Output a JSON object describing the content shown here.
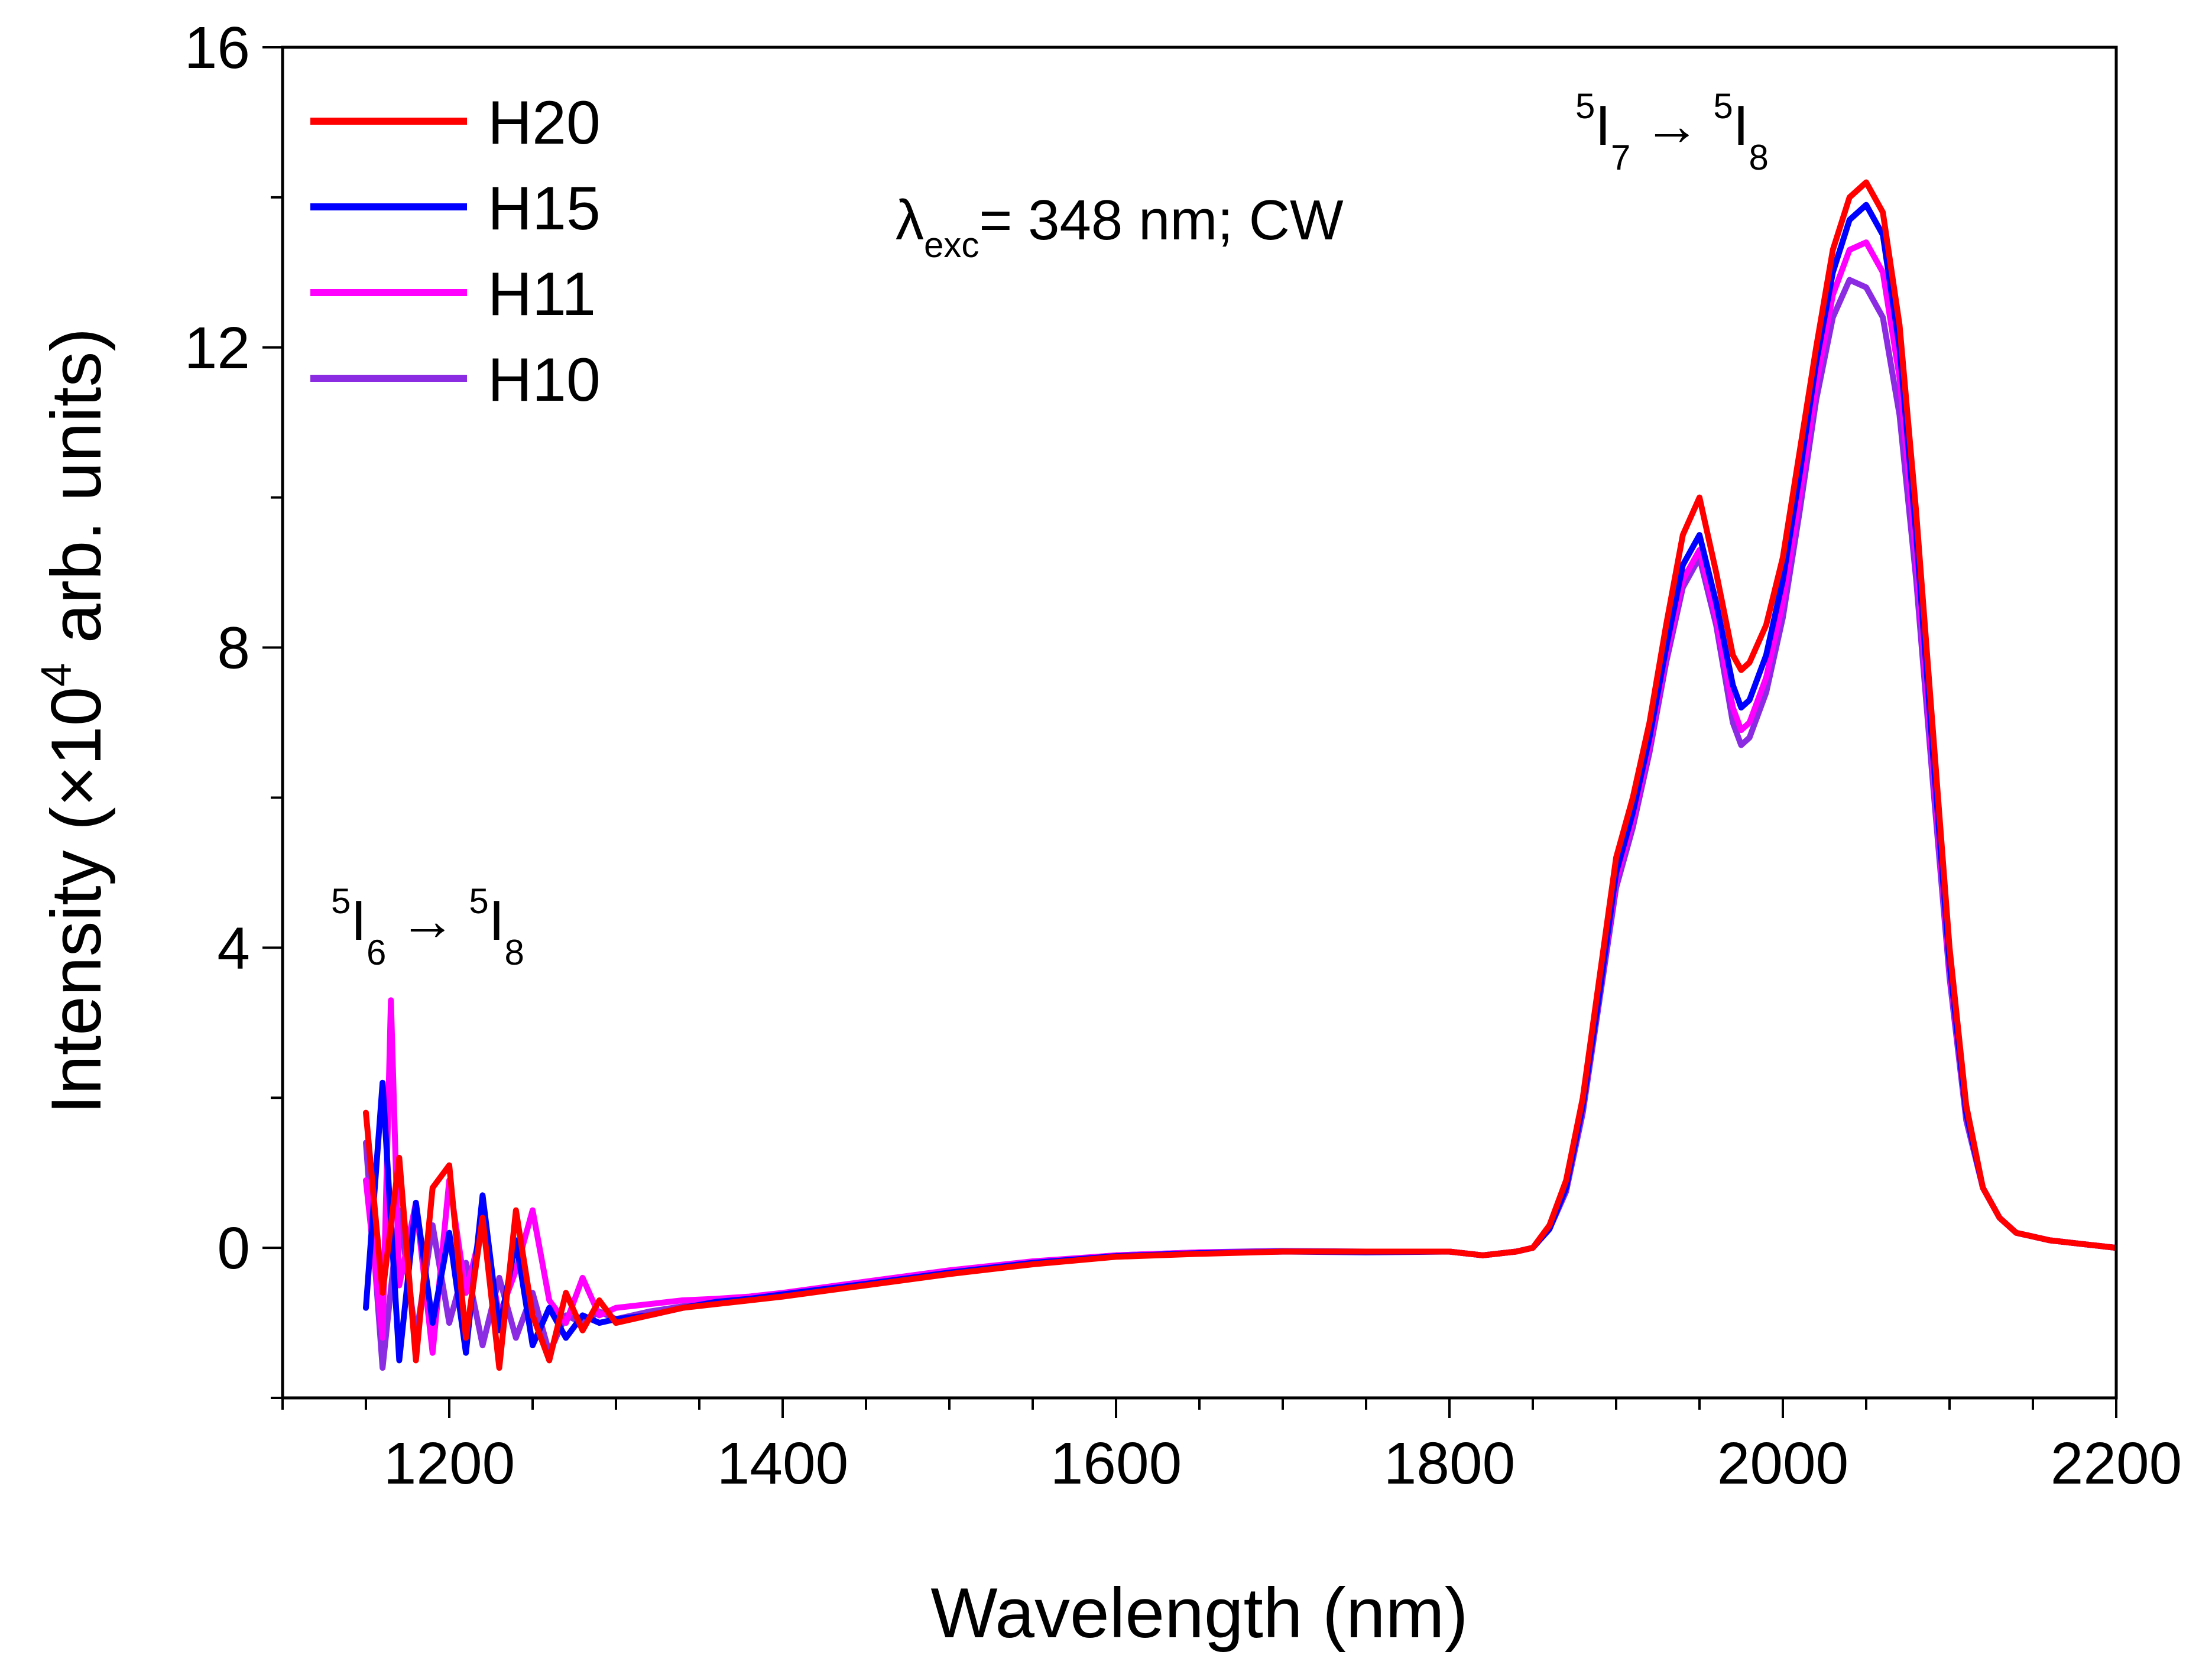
{
  "chart_data": {
    "type": "line",
    "title": "",
    "xlabel": "Wavelength (nm)",
    "ylabel_prefix": "Intensity (×10",
    "ylabel_exponent": "4",
    "ylabel_suffix": " arb. units)",
    "xlim": [
      1100,
      2200
    ],
    "ylim": [
      -2,
      16
    ],
    "x_ticks": [
      1200,
      1400,
      1600,
      1800,
      2000,
      2200
    ],
    "x_tick_labels": [
      "1200",
      "1400",
      "1600",
      "1800",
      "2000",
      "2200"
    ],
    "x_minor_step": 50,
    "y_ticks": [
      0,
      4,
      8,
      12,
      16
    ],
    "y_tick_labels": [
      "0",
      "4",
      "8",
      "12",
      "16"
    ],
    "y_minor_step": 2,
    "grid": false,
    "legend_position": "top-left",
    "annotation_excitation": {
      "symbol": "λ",
      "subscript": "exc",
      "text": "= 348 nm; CW"
    },
    "annotation_peak_low": {
      "sup1": "5",
      "level1": "I",
      "sub1": "6",
      "arrow": "→",
      "sup2": "5",
      "level2": "I",
      "sub2": "8"
    },
    "annotation_peak_high": {
      "sup1": "5",
      "level1": "I",
      "sub1": "7",
      "arrow": "→",
      "sup2": "5",
      "level2": "I",
      "sub2": "8"
    },
    "series": [
      {
        "name": "H20",
        "color": "#ff0000",
        "x": [
          1150,
          1160,
          1170,
          1180,
          1190,
          1200,
          1210,
          1220,
          1230,
          1240,
          1250,
          1260,
          1270,
          1280,
          1290,
          1300,
          1320,
          1340,
          1360,
          1380,
          1400,
          1450,
          1500,
          1550,
          1600,
          1650,
          1700,
          1750,
          1800,
          1820,
          1840,
          1850,
          1860,
          1870,
          1880,
          1890,
          1900,
          1910,
          1920,
          1930,
          1940,
          1950,
          1960,
          1970,
          1975,
          1980,
          1990,
          2000,
          2010,
          2020,
          2030,
          2040,
          2050,
          2060,
          2070,
          2080,
          2090,
          2100,
          2110,
          2120,
          2130,
          2140,
          2160,
          2180,
          2200
        ],
        "y": [
          1.8,
          -0.6,
          1.2,
          -1.5,
          0.8,
          1.1,
          -1.2,
          0.4,
          -1.6,
          0.5,
          -0.9,
          -1.5,
          -0.6,
          -1.1,
          -0.7,
          -1.0,
          -0.9,
          -0.8,
          -0.75,
          -0.7,
          -0.65,
          -0.5,
          -0.35,
          -0.22,
          -0.12,
          -0.08,
          -0.05,
          -0.05,
          -0.05,
          -0.1,
          -0.05,
          0.0,
          0.3,
          0.9,
          2.0,
          3.6,
          5.2,
          6.0,
          7.0,
          8.3,
          9.5,
          10.0,
          9.0,
          7.9,
          7.7,
          7.8,
          8.3,
          9.2,
          10.6,
          12.0,
          13.3,
          14.0,
          14.2,
          13.8,
          12.3,
          9.8,
          6.9,
          4.0,
          1.9,
          0.8,
          0.4,
          0.2,
          0.1,
          0.05,
          0.0
        ]
      },
      {
        "name": "H15",
        "color": "#0000ff",
        "x": [
          1150,
          1160,
          1170,
          1180,
          1190,
          1200,
          1210,
          1220,
          1230,
          1240,
          1250,
          1260,
          1270,
          1280,
          1290,
          1300,
          1320,
          1340,
          1360,
          1380,
          1400,
          1450,
          1500,
          1550,
          1600,
          1650,
          1700,
          1750,
          1800,
          1820,
          1840,
          1850,
          1860,
          1870,
          1880,
          1890,
          1900,
          1910,
          1920,
          1930,
          1940,
          1950,
          1960,
          1970,
          1975,
          1980,
          1990,
          2000,
          2010,
          2020,
          2030,
          2040,
          2050,
          2060,
          2070,
          2080,
          2090,
          2100,
          2110,
          2120,
          2130,
          2140,
          2160,
          2180,
          2200
        ],
        "y": [
          -0.8,
          2.2,
          -1.5,
          0.6,
          -1.0,
          0.2,
          -1.4,
          0.7,
          -1.1,
          0.1,
          -1.3,
          -0.8,
          -1.2,
          -0.9,
          -1.0,
          -0.95,
          -0.9,
          -0.8,
          -0.72,
          -0.68,
          -0.62,
          -0.48,
          -0.33,
          -0.2,
          -0.11,
          -0.07,
          -0.05,
          -0.06,
          -0.05,
          -0.1,
          -0.05,
          0.0,
          0.25,
          0.8,
          1.9,
          3.4,
          5.0,
          5.8,
          6.8,
          8.0,
          9.1,
          9.5,
          8.6,
          7.5,
          7.2,
          7.3,
          7.9,
          8.9,
          10.3,
          11.8,
          13.0,
          13.7,
          13.9,
          13.5,
          12.0,
          9.5,
          6.6,
          3.8,
          1.8,
          0.8,
          0.4,
          0.2,
          0.1,
          0.05,
          0.0
        ]
      },
      {
        "name": "H11",
        "color": "#ff00ff",
        "x": [
          1150,
          1160,
          1165,
          1170,
          1180,
          1190,
          1200,
          1210,
          1220,
          1230,
          1240,
          1250,
          1260,
          1270,
          1280,
          1290,
          1300,
          1320,
          1340,
          1360,
          1380,
          1400,
          1450,
          1500,
          1550,
          1600,
          1650,
          1700,
          1750,
          1800,
          1820,
          1840,
          1850,
          1860,
          1870,
          1880,
          1890,
          1900,
          1910,
          1920,
          1930,
          1940,
          1950,
          1960,
          1970,
          1975,
          1980,
          1990,
          2000,
          2010,
          2020,
          2030,
          2040,
          2050,
          2060,
          2070,
          2080,
          2090,
          2100,
          2110,
          2120,
          2130,
          2140,
          2160,
          2180,
          2200
        ],
        "y": [
          0.9,
          -1.2,
          3.3,
          -0.5,
          0.6,
          -1.4,
          0.9,
          -0.6,
          0.3,
          -0.9,
          -0.3,
          0.5,
          -0.7,
          -1.0,
          -0.4,
          -0.9,
          -0.8,
          -0.75,
          -0.7,
          -0.68,
          -0.65,
          -0.6,
          -0.45,
          -0.3,
          -0.18,
          -0.1,
          -0.06,
          -0.05,
          -0.05,
          -0.05,
          -0.1,
          -0.05,
          0.0,
          0.25,
          0.8,
          1.9,
          3.4,
          4.9,
          5.7,
          6.7,
          7.9,
          8.9,
          9.3,
          8.4,
          7.2,
          6.9,
          7.0,
          7.6,
          8.6,
          10.0,
          11.5,
          12.7,
          13.3,
          13.4,
          13.0,
          11.6,
          9.2,
          6.4,
          3.7,
          1.8,
          0.8,
          0.4,
          0.2,
          0.1,
          0.05,
          0.0
        ]
      },
      {
        "name": "H10",
        "color": "#8b2be2",
        "x": [
          1150,
          1160,
          1170,
          1180,
          1190,
          1200,
          1210,
          1220,
          1230,
          1240,
          1250,
          1260,
          1270,
          1280,
          1290,
          1300,
          1320,
          1340,
          1360,
          1380,
          1400,
          1450,
          1500,
          1550,
          1600,
          1650,
          1700,
          1750,
          1800,
          1820,
          1840,
          1850,
          1860,
          1870,
          1880,
          1890,
          1900,
          1910,
          1920,
          1930,
          1940,
          1950,
          1960,
          1970,
          1975,
          1980,
          1990,
          2000,
          2010,
          2020,
          2030,
          2040,
          2050,
          2060,
          2070,
          2080,
          2090,
          2100,
          2110,
          2120,
          2130,
          2140,
          2160,
          2180,
          2200
        ],
        "y": [
          1.4,
          -1.6,
          0.5,
          -1.2,
          0.3,
          -1.0,
          -0.2,
          -1.3,
          -0.4,
          -1.2,
          -0.6,
          -1.4,
          -0.9,
          -1.0,
          -0.85,
          -0.95,
          -0.85,
          -0.78,
          -0.7,
          -0.66,
          -0.62,
          -0.47,
          -0.32,
          -0.19,
          -0.1,
          -0.06,
          -0.04,
          -0.05,
          -0.05,
          -0.1,
          -0.05,
          0.0,
          0.25,
          0.75,
          1.8,
          3.3,
          4.8,
          5.6,
          6.6,
          7.8,
          8.8,
          9.2,
          8.3,
          7.0,
          6.7,
          6.8,
          7.4,
          8.4,
          9.8,
          11.3,
          12.4,
          12.9,
          12.8,
          12.4,
          11.1,
          8.9,
          6.2,
          3.6,
          1.7,
          0.8,
          0.4,
          0.2,
          0.1,
          0.05,
          0.0
        ]
      }
    ]
  }
}
